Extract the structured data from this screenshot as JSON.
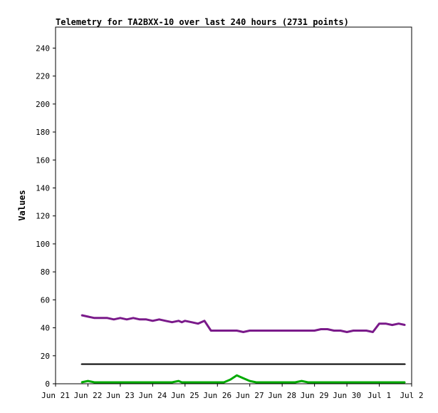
{
  "chart_data": {
    "type": "line",
    "title": "Telemetry for TA2BXX-10 over last 240 hours (2731 points)",
    "xlabel": "",
    "ylabel": "Values",
    "ylim": [
      0,
      255
    ],
    "yticks": [
      0,
      20,
      40,
      60,
      80,
      100,
      120,
      140,
      160,
      180,
      200,
      220,
      240
    ],
    "xlim": [
      0,
      11
    ],
    "xticks": [
      "Jun 21",
      "Jun 22",
      "Jun 23",
      "Jun 24",
      "Jun 25",
      "Jun 26",
      "Jun 27",
      "Jun 28",
      "Jun 29",
      "Jun 30",
      "Jul 1",
      "Jul 2"
    ],
    "grid": false,
    "series": [
      {
        "color": "#7a1a8a",
        "x": [
          0.8,
          1.0,
          1.2,
          1.4,
          1.6,
          1.8,
          2.0,
          2.2,
          2.4,
          2.6,
          2.8,
          3.0,
          3.2,
          3.4,
          3.6,
          3.8,
          3.9,
          4.0,
          4.2,
          4.4,
          4.6,
          4.8,
          5.0,
          5.2,
          5.4,
          5.6,
          5.8,
          6.0,
          6.2,
          6.4,
          6.6,
          6.8,
          7.0,
          7.2,
          7.4,
          7.6,
          7.8,
          8.0,
          8.2,
          8.4,
          8.6,
          8.8,
          9.0,
          9.2,
          9.4,
          9.6,
          9.8,
          10.0,
          10.2,
          10.4,
          10.6,
          10.8
        ],
        "y": [
          49,
          48,
          47,
          47,
          47,
          46,
          47,
          46,
          47,
          46,
          46,
          45,
          46,
          45,
          44,
          45,
          44,
          45,
          44,
          43,
          45,
          38,
          38,
          38,
          38,
          38,
          37,
          38,
          38,
          38,
          38,
          38,
          38,
          38,
          38,
          38,
          38,
          38,
          39,
          39,
          38,
          38,
          37,
          38,
          38,
          38,
          37,
          43,
          43,
          42,
          43,
          42
        ]
      },
      {
        "color": "#00aa00",
        "x": [
          0.8,
          1.0,
          1.2,
          1.4,
          1.6,
          1.8,
          2.0,
          2.2,
          2.4,
          2.6,
          2.8,
          3.0,
          3.2,
          3.4,
          3.6,
          3.8,
          3.9,
          4.0,
          4.2,
          4.4,
          4.6,
          4.8,
          5.0,
          5.2,
          5.4,
          5.6,
          5.8,
          6.0,
          6.2,
          6.4,
          6.6,
          6.8,
          7.0,
          7.2,
          7.4,
          7.6,
          7.8,
          8.0,
          8.2,
          8.4,
          8.6,
          8.8,
          9.0,
          9.2,
          9.4,
          9.6,
          9.8,
          10.0,
          10.2,
          10.4,
          10.6,
          10.8
        ],
        "y": [
          1,
          2,
          1,
          1,
          1,
          1,
          1,
          1,
          1,
          1,
          1,
          1,
          1,
          1,
          1,
          2,
          1,
          1,
          1,
          1,
          1,
          1,
          1,
          1,
          3,
          6,
          4,
          2,
          1,
          1,
          1,
          1,
          1,
          1,
          1,
          2,
          1,
          1,
          1,
          1,
          1,
          1,
          1,
          1,
          1,
          1,
          1,
          1,
          1,
          1,
          1,
          1
        ]
      },
      {
        "color": "#000000",
        "x": [
          0.8,
          10.8
        ],
        "y": [
          14,
          14
        ]
      }
    ]
  }
}
